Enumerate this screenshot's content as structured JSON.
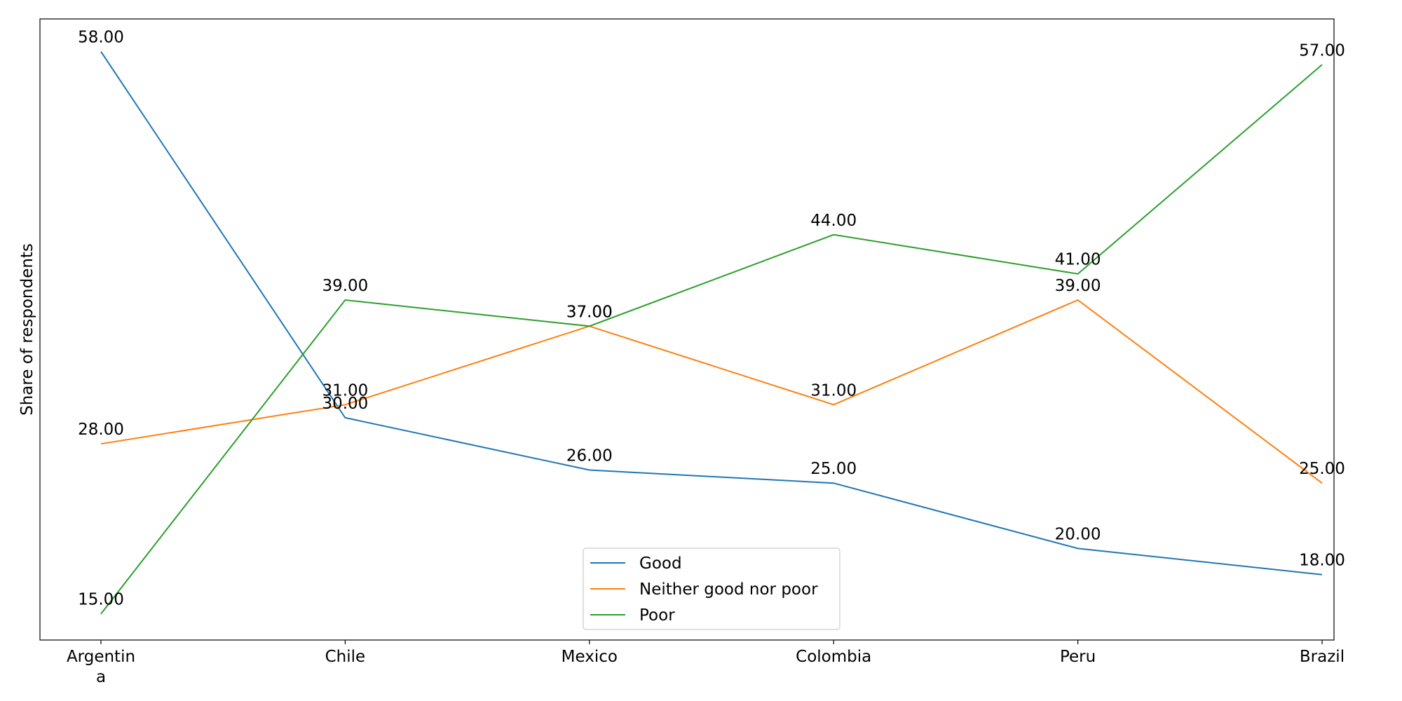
{
  "chart_data": {
    "type": "line",
    "title": "",
    "xlabel": "",
    "ylabel": "Share of respondents",
    "categories": [
      "Argentina",
      "Chile",
      "Mexico",
      "Colombia",
      "Peru",
      "Brazil"
    ],
    "category_labels": [
      [
        "Argentin",
        "a"
      ],
      [
        "Chile"
      ],
      [
        "Mexico"
      ],
      [
        "Colombia"
      ],
      [
        "Peru"
      ],
      [
        "Brazil"
      ]
    ],
    "ylim": [
      13,
      60.5
    ],
    "grid": false,
    "y_ticks_visible": false,
    "legend_position": "bottom-center",
    "series": [
      {
        "name": "Good",
        "color": "#1f77b4",
        "values": [
          58,
          30,
          26,
          25,
          20,
          18
        ]
      },
      {
        "name": "Neither good nor poor",
        "color": "#ff7f0e",
        "values": [
          28,
          31,
          37,
          31,
          39,
          25
        ]
      },
      {
        "name": "Poor",
        "color": "#2ca02c",
        "values": [
          15,
          39,
          37,
          44,
          41,
          57
        ]
      }
    ],
    "value_label_format": "2 decimals"
  }
}
